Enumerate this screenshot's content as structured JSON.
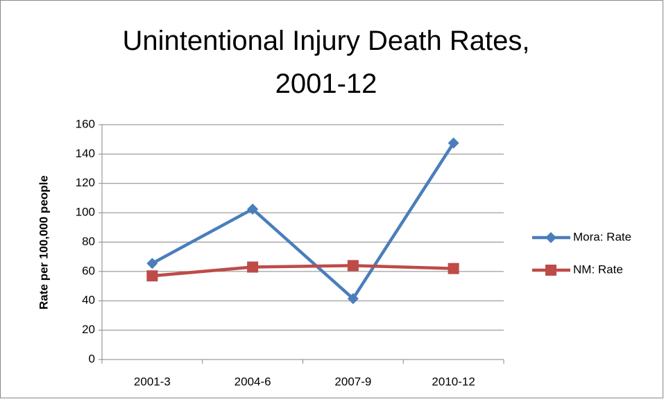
{
  "chart_data": {
    "type": "line",
    "title": "Unintentional Injury Death Rates, 2001-12",
    "y_label": "Rate per 100,000 people",
    "categories": [
      "2001-3",
      "2004-6",
      "2007-9",
      "2010-12"
    ],
    "series": [
      {
        "name": "Mora: Rate",
        "color": "#4a7ebb",
        "marker": "diamond",
        "values": [
          65.5,
          102.5,
          41.5,
          147.5
        ]
      },
      {
        "name": "NM: Rate",
        "color": "#be4b48",
        "marker": "square",
        "values": [
          57,
          63,
          64,
          62
        ]
      }
    ],
    "ylim": [
      0,
      160
    ],
    "yticks": [
      0,
      20,
      40,
      60,
      80,
      100,
      120,
      140,
      160
    ],
    "grid": true,
    "legend": "right"
  }
}
